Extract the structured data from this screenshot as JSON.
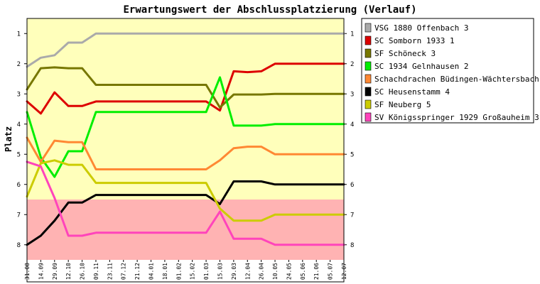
{
  "chart_data": {
    "type": "line",
    "title": "Erwartungswert der Abschlussplatzierung (Verlauf)",
    "xlabel": "",
    "ylabel": "Platz",
    "ylim": [
      0.5,
      8.5
    ],
    "y_inverted": true,
    "y_ticks": [
      1,
      2,
      3,
      4,
      5,
      6,
      7,
      8
    ],
    "bands": [
      {
        "from": 0.5,
        "to": 6.5,
        "color": "#ffffbb"
      },
      {
        "from": 6.5,
        "to": 8.5,
        "color": "#ffb3b3"
      }
    ],
    "x": [
      "31.08",
      "14.09",
      "29.09",
      "12.10",
      "26.10",
      "09.11",
      "23.11",
      "07.12",
      "21.12",
      "04.01",
      "18.01",
      "01.02",
      "15.02",
      "01.03",
      "15.03",
      "29.03",
      "12.04",
      "26.04",
      "10.05",
      "24.05",
      "05.06",
      "21.06",
      "05.07",
      "12.07"
    ],
    "legend_position": "right",
    "series": [
      {
        "name": "VSG 1880 Offenbach 3",
        "color": "#aaaaaa",
        "values": [
          2.1,
          1.8,
          1.72,
          1.3,
          1.3,
          1.0,
          1.0,
          1.0,
          1.0,
          1.0,
          1.0,
          1.0,
          1.0,
          1.0,
          1.0,
          1.0,
          1.0,
          1.0,
          1.0,
          1.0,
          1.0,
          1.0,
          1.0,
          1.0
        ]
      },
      {
        "name": "SC Somborn 1933 1",
        "color": "#dd0000",
        "values": [
          3.25,
          3.65,
          2.95,
          3.4,
          3.4,
          3.25,
          3.25,
          3.25,
          3.25,
          3.25,
          3.25,
          3.25,
          3.25,
          3.25,
          3.55,
          2.25,
          2.28,
          2.25,
          2.0,
          2.0,
          2.0,
          2.0,
          2.0,
          2.0
        ]
      },
      {
        "name": "SF Schöneck 3",
        "color": "#777700",
        "values": [
          2.85,
          2.15,
          2.12,
          2.15,
          2.15,
          2.7,
          2.7,
          2.7,
          2.7,
          2.7,
          2.7,
          2.7,
          2.7,
          2.7,
          3.45,
          3.02,
          3.02,
          3.02,
          3.0,
          3.0,
          3.0,
          3.0,
          3.0,
          3.0
        ]
      },
      {
        "name": "SC 1934 Gelnhausen 2",
        "color": "#00ee00",
        "values": [
          3.6,
          5.1,
          5.75,
          4.9,
          4.9,
          3.6,
          3.6,
          3.6,
          3.6,
          3.6,
          3.6,
          3.6,
          3.6,
          3.6,
          2.45,
          4.05,
          4.05,
          4.05,
          4.0,
          4.0,
          4.0,
          4.0,
          4.0,
          4.0
        ]
      },
      {
        "name": "Schachdrachen Büdingen-Wächtersbach 3",
        "color": "#ff8833",
        "values": [
          4.45,
          5.25,
          4.55,
          4.6,
          4.6,
          5.5,
          5.5,
          5.5,
          5.5,
          5.5,
          5.5,
          5.5,
          5.5,
          5.5,
          5.2,
          4.8,
          4.75,
          4.75,
          5.0,
          5.0,
          5.0,
          5.0,
          5.0,
          5.0
        ]
      },
      {
        "name": "SC Heusenstamm 4",
        "color": "#000000",
        "values": [
          8.0,
          7.7,
          7.2,
          6.6,
          6.6,
          6.35,
          6.35,
          6.35,
          6.35,
          6.35,
          6.35,
          6.35,
          6.35,
          6.35,
          6.65,
          5.9,
          5.9,
          5.9,
          6.0,
          6.0,
          6.0,
          6.0,
          6.0,
          6.0
        ]
      },
      {
        "name": "SF Neuberg 5",
        "color": "#cccc00",
        "values": [
          6.4,
          5.3,
          5.2,
          5.35,
          5.35,
          5.95,
          5.95,
          5.95,
          5.95,
          5.95,
          5.95,
          5.95,
          5.95,
          5.95,
          6.8,
          7.2,
          7.2,
          7.2,
          7.0,
          7.0,
          7.0,
          7.0,
          7.0,
          7.0
        ]
      },
      {
        "name": "SV Königsspringer 1929 Großauheim 3",
        "color": "#ff44bb",
        "values": [
          5.25,
          5.4,
          6.45,
          7.7,
          7.7,
          7.6,
          7.6,
          7.6,
          7.6,
          7.6,
          7.6,
          7.6,
          7.6,
          7.6,
          6.9,
          7.8,
          7.8,
          7.8,
          8.0,
          8.0,
          8.0,
          8.0,
          8.0,
          8.0
        ]
      }
    ]
  }
}
